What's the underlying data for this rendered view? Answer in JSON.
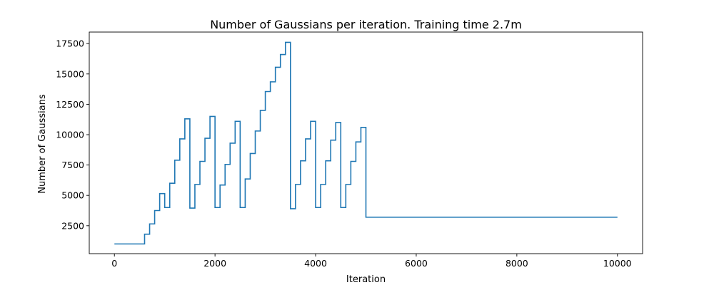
{
  "chart_data": {
    "type": "line",
    "title": "Number of Gaussians per iteration. Training time 2.7m",
    "xlabel": "Iteration",
    "ylabel": "Number of Gaussians",
    "xlim": [
      -500,
      10500
    ],
    "ylim": [
      200,
      18450
    ],
    "xticks": [
      0,
      2000,
      4000,
      6000,
      8000,
      10000
    ],
    "yticks": [
      2500,
      5000,
      7500,
      10000,
      12500,
      15000,
      17500
    ],
    "grid": false,
    "step": "post",
    "color": "#1f77b4",
    "series": [
      {
        "x": [
          0,
          600,
          700,
          800,
          900,
          1000,
          1100,
          1200,
          1300,
          1400,
          1500,
          1600,
          1700,
          1800,
          1900,
          2000,
          2100,
          2200,
          2300,
          2400,
          2500,
          2600,
          2700,
          2800,
          2900,
          3000,
          3100,
          3200,
          3300,
          3400,
          3500,
          3600,
          3700,
          3800,
          3900,
          4000,
          4100,
          4200,
          4300,
          4400,
          4500,
          4600,
          4700,
          4800,
          4900,
          5000,
          10000
        ],
        "values": [
          1000,
          1800,
          2650,
          3750,
          5150,
          4000,
          6000,
          7900,
          9650,
          11300,
          3950,
          5900,
          7800,
          9700,
          11500,
          4000,
          5850,
          7550,
          9300,
          11100,
          4000,
          6350,
          8450,
          10300,
          12000,
          13550,
          14350,
          15550,
          16600,
          17600,
          3900,
          5900,
          7850,
          9650,
          11100,
          4000,
          5900,
          7850,
          9550,
          11000,
          4000,
          5900,
          7800,
          9400,
          10600,
          3200,
          3200
        ]
      }
    ]
  }
}
